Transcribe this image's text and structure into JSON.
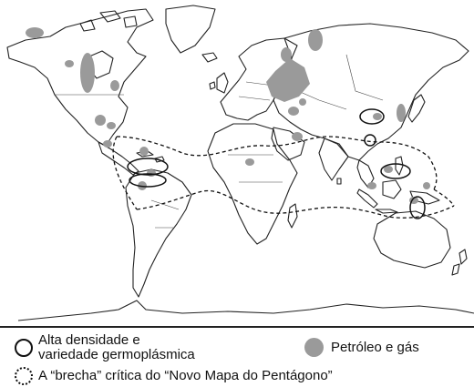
{
  "legend": {
    "biodiversity_line1": "Alta densidade e",
    "biodiversity_line2": "variedade germoplásmica",
    "oil_gas": "Petróleo e gás",
    "pentagon_gap": "A “brecha” crítica do “Novo Mapa do Pentágono”"
  },
  "icons": {
    "biodiversity": "open-circle-icon",
    "oil_gas": "gray-filled-circle-icon",
    "pentagon_gap": "dotted-circle-icon"
  },
  "colors": {
    "oil_gas_fill": "#9a9a9a",
    "land_outline": "#222222",
    "background": "#ffffff"
  }
}
